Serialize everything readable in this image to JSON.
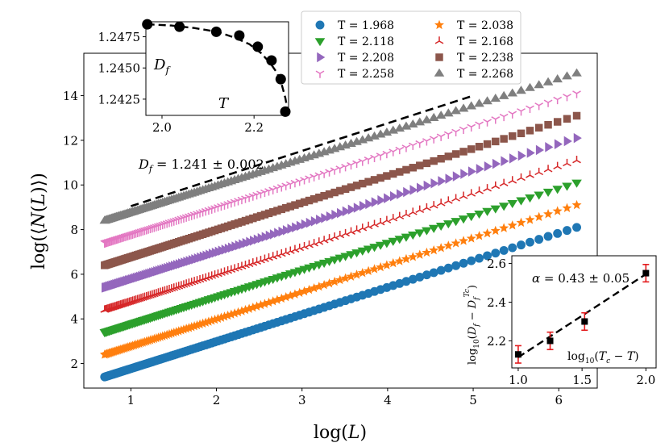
{
  "chart_data": [
    {
      "id": "main",
      "type": "scatter",
      "xlabel": "log(L)",
      "ylabel": "log(⟨N(L)⟩)",
      "xlim": [
        0.45,
        6.45
      ],
      "ylim": [
        0.9,
        15.9
      ],
      "x_ticks": [
        1,
        2,
        3,
        4,
        5,
        6
      ],
      "y_ticks": [
        2,
        4,
        6,
        8,
        10,
        12,
        14
      ],
      "x_tick_labels": [
        "1",
        "2",
        "3",
        "4",
        "5",
        "6"
      ],
      "y_tick_labels": [
        "2",
        "4",
        "6",
        "8",
        "10",
        "12",
        "14"
      ],
      "series_x_range": [
        0.693,
        6.21
      ],
      "series": [
        {
          "name": "T = 1.968",
          "color": "#1f77b4",
          "marker": "circle",
          "y_start": 1.4,
          "y_end": 8.1
        },
        {
          "name": "T = 2.038",
          "color": "#ff7f0e",
          "marker": "star",
          "y_start": 2.4,
          "y_end": 9.1
        },
        {
          "name": "T = 2.118",
          "color": "#2ca02c",
          "marker": "triangle-down",
          "y_start": 3.4,
          "y_end": 10.1
        },
        {
          "name": "T = 2.168",
          "color": "#d62728",
          "marker": "tri-up",
          "y_start": 4.4,
          "y_end": 11.1
        },
        {
          "name": "T = 2.208",
          "color": "#9467bd",
          "marker": "triangle-right",
          "y_start": 5.4,
          "y_end": 12.1
        },
        {
          "name": "T = 2.238",
          "color": "#8c564b",
          "marker": "square",
          "y_start": 6.4,
          "y_end": 13.1
        },
        {
          "name": "T = 2.258",
          "color": "#e377c2",
          "marker": "tri-down",
          "y_start": 7.4,
          "y_end": 14.1
        },
        {
          "name": "T = 2.268",
          "color": "#7f7f7f",
          "marker": "triangle-up",
          "y_start": 8.4,
          "y_end": 15.0
        }
      ],
      "reference_line": {
        "x": [
          1.0,
          5.0
        ],
        "y": [
          9.05,
          14.0
        ],
        "style": "dashed"
      },
      "annotation": "D_f = 1.241 ± 0.002",
      "legend": {
        "placement": "top-center",
        "labels": [
          "T = 1.968",
          "T = 2.038",
          "T = 2.118",
          "T = 2.168",
          "T = 2.208",
          "T = 2.238",
          "T = 2.258",
          "T = 2.268"
        ]
      }
    },
    {
      "id": "inset_top",
      "type": "line",
      "xlabel": "T",
      "ylabel": "D_f",
      "xlim": [
        1.965,
        2.275
      ],
      "ylim": [
        1.2412,
        1.2487
      ],
      "x_ticks": [
        2.0,
        2.2
      ],
      "y_ticks": [
        1.2425,
        1.245,
        1.2475
      ],
      "x_tick_labels": [
        "2.0",
        "2.2"
      ],
      "y_tick_labels": [
        "1.2425",
        "1.2450",
        "1.2475"
      ],
      "points": {
        "x": [
          1.968,
          2.038,
          2.118,
          2.168,
          2.208,
          2.238,
          2.258,
          2.268
        ],
        "y": [
          1.2485,
          1.2483,
          1.2479,
          1.2476,
          1.2467,
          1.2456,
          1.2441,
          1.2415
        ]
      },
      "fit": {
        "x": [
          1.968,
          2.02,
          2.07,
          2.12,
          2.16,
          2.19,
          2.215,
          2.235,
          2.25,
          2.26,
          2.268,
          2.275
        ],
        "y": [
          1.2485,
          1.2484,
          1.2482,
          1.2479,
          1.2474,
          1.2469,
          1.2462,
          1.2454,
          1.2446,
          1.2437,
          1.2426,
          1.2408
        ]
      }
    },
    {
      "id": "inset_bottom",
      "type": "scatter",
      "xlabel": "log10(Tc − T)",
      "ylabel": "log10(D_f − D_f^{Tc})",
      "xlim": [
        0.95,
        2.08
      ],
      "ylim": [
        2.06,
        2.64
      ],
      "x_ticks": [
        1.0,
        1.5,
        2.0
      ],
      "y_ticks": [
        2.2,
        2.4,
        2.6
      ],
      "x_tick_labels": [
        "1.0",
        "1.5",
        "2.0"
      ],
      "y_tick_labels": [
        "2.2",
        "2.4",
        "2.6"
      ],
      "points": {
        "x": [
          1.0,
          1.25,
          1.52,
          2.0
        ],
        "y": [
          2.13,
          2.2,
          2.3,
          2.55
        ],
        "err": [
          0.045,
          0.045,
          0.045,
          0.045
        ]
      },
      "fit": {
        "x": [
          1.0,
          2.0
        ],
        "y": [
          2.115,
          2.545
        ]
      },
      "annotation": "α = 0.43 ± 0.05"
    }
  ]
}
